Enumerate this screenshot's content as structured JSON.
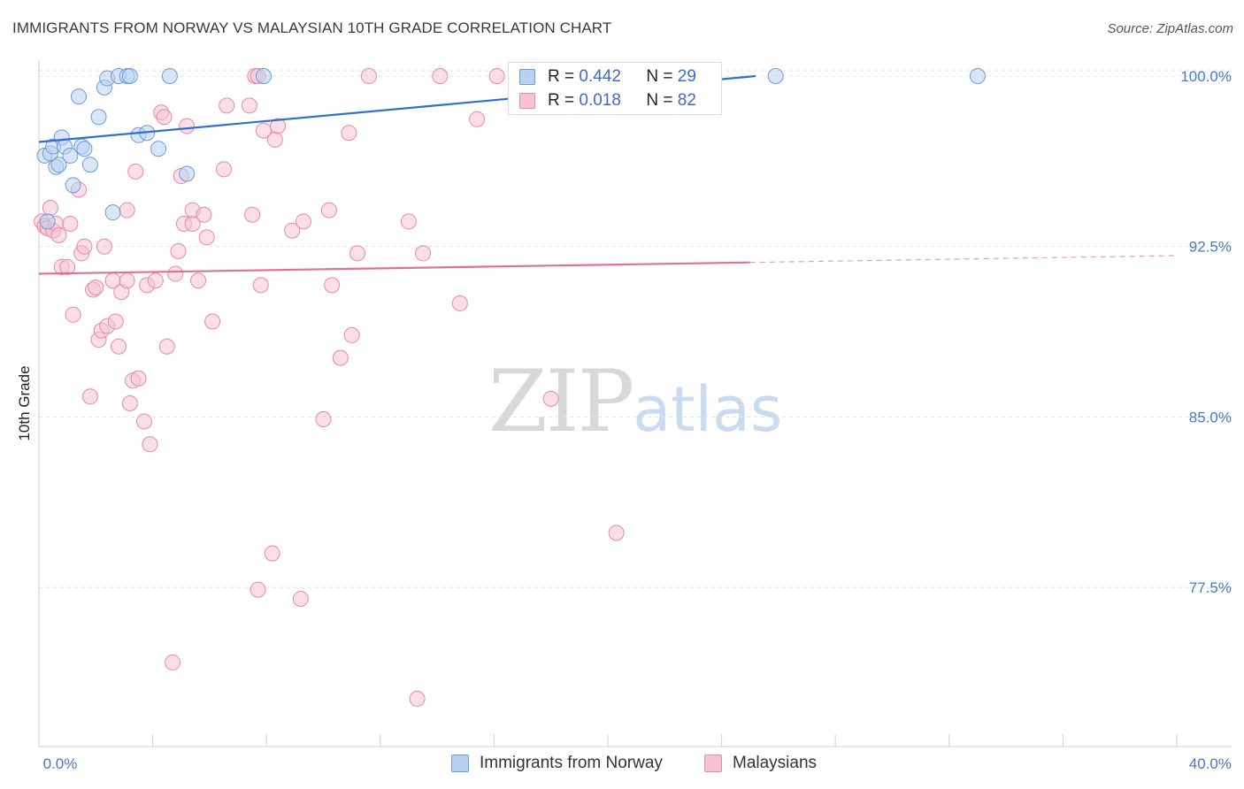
{
  "title": "IMMIGRANTS FROM NORWAY VS MALAYSIAN 10TH GRADE CORRELATION CHART",
  "source": "Source: ZipAtlas.com",
  "watermark": {
    "zip": "ZIP",
    "atlas": "atlas"
  },
  "legend_stats": [
    {
      "r_label": "R =",
      "r_value": "0.442",
      "n_label": "N =",
      "n_value": "29",
      "color": "#b8d1f2",
      "border": "#6f9ad8"
    },
    {
      "r_label": "R =",
      "r_value": "0.018",
      "n_label": "N =",
      "n_value": "82",
      "color": "#f7c3d3",
      "border": "#e889a8"
    }
  ],
  "colors": {
    "norway_fill": "#b8d1f2",
    "norway_stroke": "#6f9ad8",
    "norway_line": "#2f6fcf",
    "malaysia_fill": "#f7c3d3",
    "malaysia_stroke": "#e48aa8",
    "malaysia_line": "#e0709a",
    "tick_text": "#4a78c2",
    "grid": "#e2e2e2"
  },
  "chart_data": {
    "type": "scatter",
    "title": "IMMIGRANTS FROM NORWAY VS MALAYSIAN 10TH GRADE CORRELATION CHART",
    "xlabel": "",
    "ylabel": "10th Grade",
    "xlim": [
      0,
      40
    ],
    "ylim": [
      70.5,
      100.7
    ],
    "x_tick_labels": [
      "0.0%",
      "40.0%"
    ],
    "y_ticks": [
      100.0,
      92.5,
      85.0,
      77.5
    ],
    "y_tick_labels": [
      "100.0%",
      "92.5%",
      "85.0%",
      "77.5%"
    ],
    "grid": true,
    "legend_position": "bottom",
    "series": [
      {
        "name": "Immigrants from Norway",
        "R": 0.442,
        "N": 29,
        "trend": {
          "x0": 0.0,
          "y0": 97.1,
          "x1": 25.2,
          "y1": 100.0
        },
        "points": [
          [
            0.2,
            96.5
          ],
          [
            0.3,
            93.6
          ],
          [
            0.4,
            96.6
          ],
          [
            0.5,
            96.9
          ],
          [
            0.6,
            96.0
          ],
          [
            0.7,
            96.1
          ],
          [
            0.8,
            97.3
          ],
          [
            0.9,
            96.9
          ],
          [
            1.1,
            96.5
          ],
          [
            1.2,
            95.2
          ],
          [
            1.4,
            99.1
          ],
          [
            1.5,
            96.9
          ],
          [
            1.6,
            96.8
          ],
          [
            1.8,
            96.1
          ],
          [
            2.1,
            98.2
          ],
          [
            2.3,
            99.5
          ],
          [
            2.4,
            99.9
          ],
          [
            2.6,
            94.0
          ],
          [
            2.8,
            100.0
          ],
          [
            3.1,
            100.0
          ],
          [
            3.2,
            100.0
          ],
          [
            3.5,
            97.4
          ],
          [
            3.8,
            97.5
          ],
          [
            4.2,
            96.8
          ],
          [
            4.6,
            100.0
          ],
          [
            5.2,
            95.7
          ],
          [
            7.9,
            100.0
          ],
          [
            25.9,
            100.0
          ],
          [
            33.0,
            100.0
          ]
        ]
      },
      {
        "name": "Malaysians",
        "R": 0.018,
        "N": 82,
        "trend": {
          "x0": 0.0,
          "y0": 91.3,
          "x1": 25.0,
          "y1": 91.8,
          "dashed_to_x": 40.0,
          "dashed_to_y": 92.1
        },
        "points": [
          [
            0.1,
            93.6
          ],
          [
            0.2,
            93.4
          ],
          [
            0.3,
            93.3
          ],
          [
            0.4,
            94.2
          ],
          [
            0.5,
            93.2
          ],
          [
            0.6,
            93.5
          ],
          [
            0.7,
            93.0
          ],
          [
            0.8,
            91.6
          ],
          [
            1.0,
            91.6
          ],
          [
            1.1,
            93.5
          ],
          [
            1.2,
            89.5
          ],
          [
            1.4,
            95.0
          ],
          [
            1.5,
            92.2
          ],
          [
            1.6,
            92.5
          ],
          [
            1.8,
            85.9
          ],
          [
            1.9,
            90.6
          ],
          [
            2.0,
            90.7
          ],
          [
            2.1,
            88.4
          ],
          [
            2.2,
            88.8
          ],
          [
            2.3,
            92.5
          ],
          [
            2.4,
            89.0
          ],
          [
            2.6,
            91.0
          ],
          [
            2.7,
            89.2
          ],
          [
            2.8,
            88.1
          ],
          [
            2.9,
            90.5
          ],
          [
            3.1,
            91.0
          ],
          [
            3.1,
            94.1
          ],
          [
            3.2,
            85.6
          ],
          [
            3.3,
            86.6
          ],
          [
            3.4,
            95.8
          ],
          [
            3.5,
            86.7
          ],
          [
            3.7,
            84.8
          ],
          [
            3.8,
            90.8
          ],
          [
            3.9,
            83.8
          ],
          [
            4.1,
            91.0
          ],
          [
            4.3,
            98.4
          ],
          [
            4.4,
            98.2
          ],
          [
            4.5,
            88.1
          ],
          [
            4.7,
            74.2
          ],
          [
            4.8,
            91.3
          ],
          [
            4.9,
            92.3
          ],
          [
            5.0,
            95.6
          ],
          [
            5.1,
            93.5
          ],
          [
            5.2,
            97.8
          ],
          [
            5.4,
            93.5
          ],
          [
            5.4,
            94.1
          ],
          [
            5.6,
            91.0
          ],
          [
            5.8,
            93.9
          ],
          [
            5.9,
            92.9
          ],
          [
            6.1,
            89.2
          ],
          [
            6.5,
            95.9
          ],
          [
            6.6,
            98.7
          ],
          [
            7.4,
            98.7
          ],
          [
            7.5,
            93.9
          ],
          [
            7.6,
            100.0
          ],
          [
            7.7,
            100.0
          ],
          [
            7.7,
            77.4
          ],
          [
            7.8,
            90.8
          ],
          [
            7.9,
            97.6
          ],
          [
            8.2,
            79.0
          ],
          [
            8.3,
            97.2
          ],
          [
            8.4,
            97.8
          ],
          [
            8.9,
            93.2
          ],
          [
            9.2,
            77.0
          ],
          [
            9.3,
            93.6
          ],
          [
            10.0,
            84.9
          ],
          [
            10.2,
            94.1
          ],
          [
            10.3,
            90.8
          ],
          [
            10.6,
            87.6
          ],
          [
            10.9,
            97.5
          ],
          [
            11.0,
            88.6
          ],
          [
            11.2,
            92.2
          ],
          [
            11.6,
            100.0
          ],
          [
            13.0,
            93.6
          ],
          [
            13.3,
            72.6
          ],
          [
            13.5,
            92.2
          ],
          [
            14.1,
            100.0
          ],
          [
            14.8,
            90.0
          ],
          [
            15.4,
            98.1
          ],
          [
            16.1,
            100.0
          ],
          [
            18.0,
            85.8
          ],
          [
            20.3,
            79.9
          ]
        ]
      }
    ]
  }
}
